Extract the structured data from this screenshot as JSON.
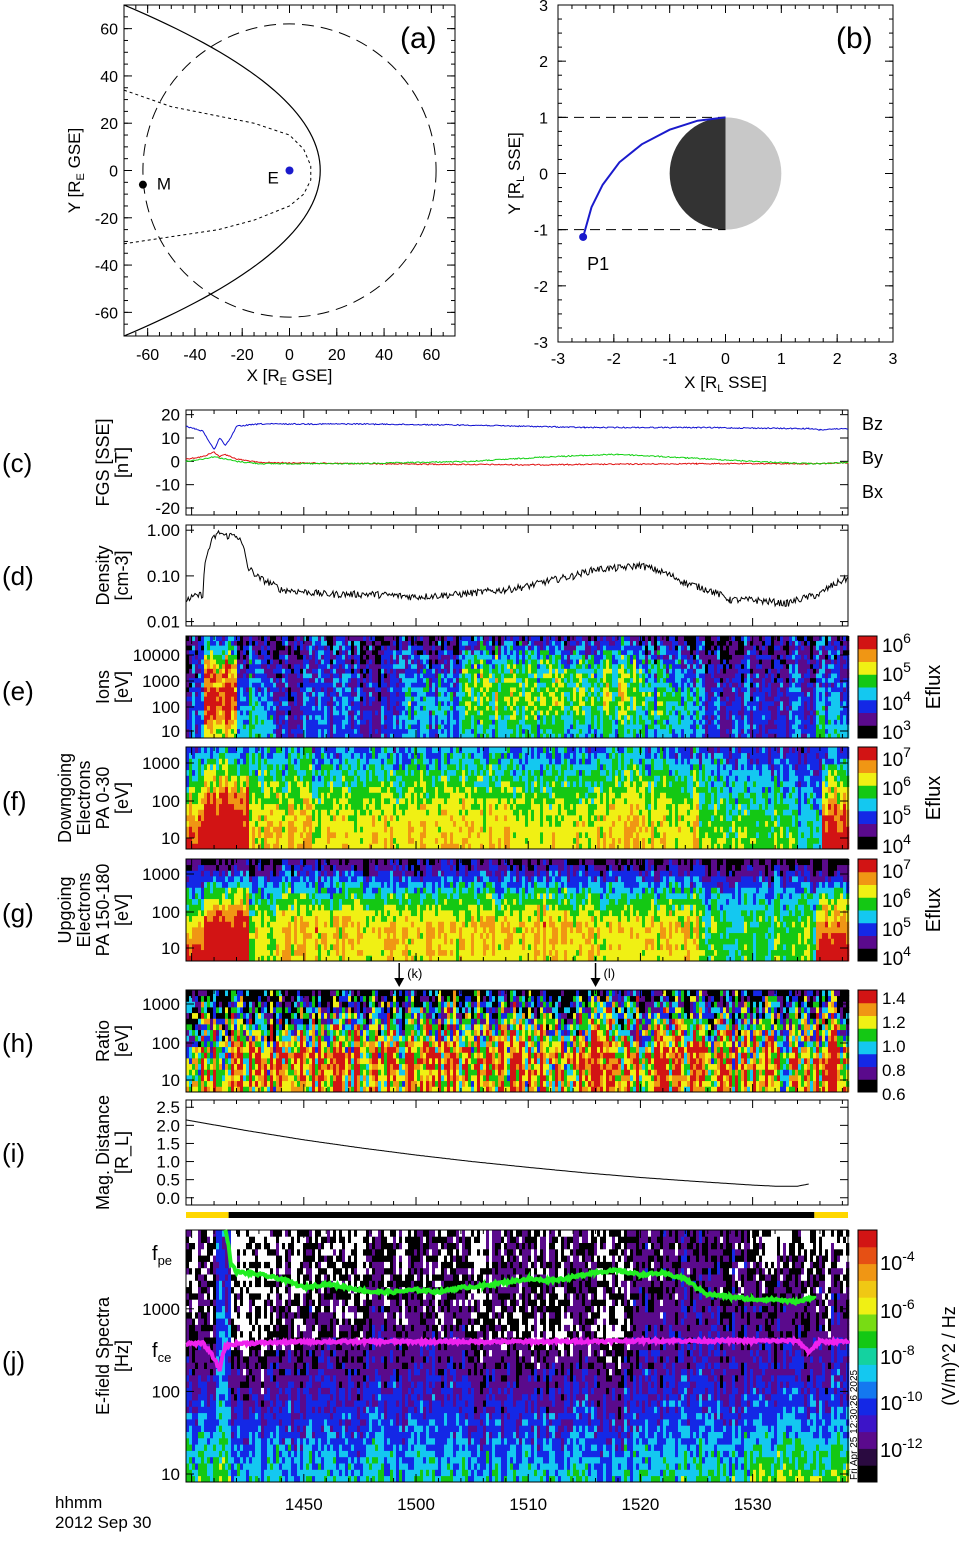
{
  "chart_data": [
    {
      "id": "a",
      "type": "line",
      "panel_label": "(a)",
      "xlabel": "X [R_E GSE]",
      "ylabel": "Y [R_E GSE]",
      "xlim": [
        -70,
        70
      ],
      "ylim": [
        -70,
        70
      ],
      "xticks": [
        "-60",
        "-40",
        "-20",
        "0",
        "20",
        "40",
        "60"
      ],
      "yticks": [
        "-60",
        "-40",
        "-20",
        "0",
        "20",
        "40",
        "60"
      ],
      "tick_values": [
        -60,
        -40,
        -20,
        0,
        20,
        40,
        60
      ],
      "bow_shock": {
        "nose_x": 13,
        "edge": [
          -70,
          70
        ]
      },
      "magnetopause": [
        [
          -70,
          34
        ],
        [
          -50,
          27
        ],
        [
          -30,
          23
        ],
        [
          -15,
          20
        ],
        [
          0,
          15
        ],
        [
          6,
          9
        ],
        [
          9,
          2
        ],
        [
          9,
          -4
        ],
        [
          6,
          -10
        ],
        [
          0,
          -15
        ],
        [
          -15,
          -21
        ],
        [
          -30,
          -25
        ],
        [
          -50,
          -28
        ],
        [
          -70,
          -31
        ]
      ],
      "lunar_orbit_radius": 62,
      "moon": {
        "label": "M",
        "x": -62,
        "y": -6,
        "color": "#000000"
      },
      "earth": {
        "label": "E",
        "x": 0,
        "y": 0,
        "color": "#1a1acc"
      }
    },
    {
      "id": "b",
      "type": "line",
      "panel_label": "(b)",
      "xlabel": "X [R_L SSE]",
      "ylabel": "Y [R_L SSE]",
      "xlim": [
        -3,
        3
      ],
      "ylim": [
        -3,
        3
      ],
      "xticks": [
        "-3",
        "-2",
        "-1",
        "0",
        "1",
        "2",
        "3"
      ],
      "yticks": [
        "-3",
        "-2",
        "-1",
        "0",
        "1",
        "2",
        "3"
      ],
      "tick_values": [
        -3,
        -2,
        -1,
        0,
        1,
        2,
        3
      ],
      "trajectory": [
        [
          -2.55,
          -1.13
        ],
        [
          -2.4,
          -0.6
        ],
        [
          -2.2,
          -0.2
        ],
        [
          -1.9,
          0.2
        ],
        [
          -1.5,
          0.52
        ],
        [
          -1.0,
          0.78
        ],
        [
          -0.5,
          0.94
        ],
        [
          0,
          1.0
        ]
      ],
      "trajectory_color": "#1a1acc",
      "point": {
        "label": "P1",
        "x": -2.55,
        "y": -1.13
      },
      "moon_dark_color": "#333333",
      "moon_light_color": "#c8c8c8"
    },
    {
      "id": "c",
      "type": "line",
      "panel_label": "(c)",
      "ylabel": [
        "FGS [SSE]",
        "[nT]"
      ],
      "ylim": [
        -23,
        22
      ],
      "yticks": [
        "20",
        "10",
        "0",
        "-10",
        "-20"
      ],
      "tick_values": [
        20,
        10,
        0,
        -10,
        -20
      ],
      "series": [
        {
          "name": "Bz",
          "color": "#e01010",
          "t": [
            39.5,
            41,
            42,
            42.5,
            43,
            44,
            46,
            55,
            70,
            85,
            95,
            96,
            98.5
          ],
          "values": [
            1,
            2,
            4,
            2,
            3,
            1,
            -0.5,
            -1,
            -1.5,
            -1,
            -1,
            -1,
            -0.5
          ]
        },
        {
          "name": "By",
          "color": "#10d010",
          "t": [
            39.5,
            41,
            42,
            43,
            44,
            46,
            55,
            65,
            72,
            78,
            84,
            90,
            95,
            96,
            98.5
          ],
          "values": [
            0,
            1,
            2,
            1,
            0,
            -1,
            -1,
            0,
            2,
            3,
            1.5,
            0,
            -1,
            -1,
            -0.5
          ]
        },
        {
          "name": "Bx",
          "color": "#1010d0",
          "t": [
            39.5,
            41,
            42,
            42.5,
            43,
            43.5,
            44,
            46,
            55,
            65,
            75,
            85,
            95,
            96,
            98.5
          ],
          "values": [
            15,
            13,
            5,
            10,
            7,
            10,
            15,
            16,
            16,
            15.5,
            14.5,
            14.5,
            14,
            13.5,
            14
          ]
        }
      ]
    },
    {
      "id": "d",
      "type": "line",
      "panel_label": "(d)",
      "ylabel": [
        "Density",
        "[cm-3]"
      ],
      "yscale": "log",
      "ylim": [
        0.008,
        1.3
      ],
      "yticks": [
        "1.00",
        "0.10",
        "0.01"
      ],
      "tick_values": [
        1,
        0.1,
        0.01
      ],
      "series": [
        {
          "name": "density",
          "color": "#000000",
          "t": [
            39.5,
            41,
            42,
            42.5,
            43,
            44,
            45,
            46,
            48,
            52,
            56,
            60,
            64,
            68,
            70,
            72,
            74,
            76,
            78,
            80,
            82,
            84,
            86,
            88,
            90,
            93,
            96,
            98.5
          ],
          "values": [
            0.03,
            0.04,
            0.7,
            0.9,
            0.75,
            0.8,
            0.15,
            0.09,
            0.05,
            0.04,
            0.04,
            0.035,
            0.04,
            0.05,
            0.06,
            0.08,
            0.1,
            0.14,
            0.15,
            0.17,
            0.12,
            0.07,
            0.05,
            0.03,
            0.03,
            0.025,
            0.04,
            0.09
          ]
        }
      ]
    },
    {
      "id": "e",
      "type": "heatmap",
      "panel_label": "(e)",
      "ylabel": [
        "Ions",
        "[eV]"
      ],
      "yticks": [
        "10000",
        "1000",
        "100",
        "10"
      ],
      "colorbar": {
        "ticks": [
          "10^6",
          "10^5",
          "10^4",
          "10^3"
        ],
        "label": "Eflux",
        "range_log": [
          3,
          6.3
        ]
      },
      "energy_bands": [
        "10-100",
        "100-1000",
        "1000-10000",
        ">10000"
      ],
      "segments": [
        {
          "t": [
            39.5,
            41
          ],
          "levels": [
            0.3,
            0.3,
            0.22,
            0.15
          ]
        },
        {
          "t": [
            41,
            44
          ],
          "levels": [
            0.65,
            0.95,
            0.8,
            0.3
          ]
        },
        {
          "t": [
            44,
            47.5
          ],
          "levels": [
            0.5,
            0.42,
            0.3,
            0.2
          ]
        },
        {
          "t": [
            47.5,
            59
          ],
          "levels": [
            0.3,
            0.28,
            0.25,
            0.2
          ]
        },
        {
          "t": [
            59,
            64
          ],
          "levels": [
            0.38,
            0.45,
            0.35,
            0.2
          ]
        },
        {
          "t": [
            64,
            80
          ],
          "levels": [
            0.45,
            0.6,
            0.55,
            0.25
          ]
        },
        {
          "t": [
            80,
            85
          ],
          "levels": [
            0.4,
            0.52,
            0.38,
            0.2
          ]
        },
        {
          "t": [
            85,
            95.5
          ],
          "levels": [
            0.3,
            0.3,
            0.25,
            0.2
          ]
        },
        {
          "t": [
            95.5,
            98.5
          ],
          "levels": [
            0.45,
            0.35,
            0.25,
            0.2
          ]
        }
      ]
    },
    {
      "id": "f",
      "type": "heatmap",
      "panel_label": "(f)",
      "ylabel": [
        "Downgoing",
        "Electrons",
        "PA 0-30",
        "[eV]"
      ],
      "yticks": [
        "1000",
        "100",
        "10"
      ],
      "colorbar": {
        "ticks": [
          "10^7",
          "10^6",
          "10^5",
          "10^4"
        ],
        "label": "Eflux",
        "range_log": [
          3.8,
          7.2
        ]
      },
      "segments": [
        {
          "t": [
            39.5,
            41
          ],
          "levels": [
            0.95,
            0.75,
            0.5,
            0.35
          ]
        },
        {
          "t": [
            41,
            45
          ],
          "levels": [
            1,
            1,
            0.7,
            0.4
          ]
        },
        {
          "t": [
            45,
            85
          ],
          "levels": [
            0.72,
            0.68,
            0.55,
            0.38
          ]
        },
        {
          "t": [
            85,
            94
          ],
          "levels": [
            0.62,
            0.55,
            0.45,
            0.3
          ]
        },
        {
          "t": [
            94,
            96
          ],
          "levels": [
            0.5,
            0.45,
            0.35,
            0.25
          ]
        },
        {
          "t": [
            96,
            98.5
          ],
          "levels": [
            1,
            0.85,
            0.6,
            0.3
          ]
        }
      ]
    },
    {
      "id": "g",
      "type": "heatmap",
      "panel_label": "(g)",
      "ylabel": [
        "Upgoing",
        "Electrons",
        "PA 150-180",
        "[eV]"
      ],
      "yticks": [
        "1000",
        "100",
        "10"
      ],
      "colorbar": {
        "ticks": [
          "10^7",
          "10^6",
          "10^5",
          "10^4"
        ],
        "label": "Eflux",
        "range_log": [
          3.8,
          7.2
        ]
      },
      "segments": [
        {
          "t": [
            39.5,
            41
          ],
          "levels": [
            0.9,
            0.7,
            0.4,
            0.08
          ]
        },
        {
          "t": [
            41,
            45
          ],
          "levels": [
            1,
            1,
            0.6,
            0.1
          ]
        },
        {
          "t": [
            45,
            48
          ],
          "levels": [
            0.65,
            0.65,
            0.45,
            0.1
          ]
        },
        {
          "t": [
            48,
            85
          ],
          "levels": [
            0.7,
            0.75,
            0.5,
            0.15
          ]
        },
        {
          "t": [
            85,
            95.5
          ],
          "levels": [
            0.55,
            0.55,
            0.42,
            0.1
          ]
        },
        {
          "t": [
            95.5,
            98.5
          ],
          "levels": [
            1,
            0.85,
            0.55,
            0.05
          ]
        }
      ]
    },
    {
      "id": "h",
      "type": "heatmap",
      "panel_label": "(h)",
      "ylabel": [
        "Ratio",
        "[eV]"
      ],
      "yticks": [
        "1000",
        "100",
        "10"
      ],
      "colorbar": {
        "ticks": [
          "1.4",
          "1.2",
          "1.0",
          "0.8",
          "0.6"
        ],
        "label": "",
        "range": [
          0.55,
          1.5
        ]
      },
      "annotations": [
        {
          "label": "(k)",
          "t": 58.5
        },
        {
          "label": "(l)",
          "t": 76
        }
      ],
      "segments": [
        {
          "t": [
            39.5,
            45
          ],
          "levels": [
            0.8,
            0.7,
            0.5,
            0.2
          ]
        },
        {
          "t": [
            45,
            50
          ],
          "levels": [
            0.7,
            0.85,
            0.4,
            0.05
          ]
        },
        {
          "t": [
            50,
            85
          ],
          "levels": [
            0.75,
            0.85,
            0.55,
            0.15
          ]
        },
        {
          "t": [
            85,
            95.5
          ],
          "levels": [
            0.7,
            0.75,
            0.5,
            0.1
          ]
        },
        {
          "t": [
            95.5,
            98.5
          ],
          "levels": [
            0.95,
            0.9,
            0.6,
            0.05
          ]
        }
      ]
    },
    {
      "id": "i",
      "type": "line",
      "panel_label": "(i)",
      "ylabel": [
        "Mag. Distance",
        "[R_L]"
      ],
      "ylim": [
        -0.2,
        2.7
      ],
      "yticks": [
        "2.5",
        "2.0",
        "1.5",
        "1.0",
        "0.5",
        "0.0"
      ],
      "tick_values": [
        2.5,
        2.0,
        1.5,
        1.0,
        0.5,
        0.0
      ],
      "series": [
        {
          "name": "distance",
          "color": "#000000",
          "t": [
            39.5,
            45,
            50,
            55,
            60,
            65,
            70,
            75,
            80,
            85,
            90,
            92,
            94,
            95
          ],
          "values": [
            2.15,
            1.85,
            1.6,
            1.38,
            1.18,
            1.0,
            0.84,
            0.69,
            0.56,
            0.45,
            0.35,
            0.32,
            0.32,
            0.38
          ]
        }
      ],
      "status_bar": [
        {
          "t": [
            39.5,
            43.3
          ],
          "color": "#ffd700"
        },
        {
          "t": [
            43.3,
            95.5
          ],
          "color": "#000000"
        },
        {
          "t": [
            95.5,
            98.5
          ],
          "color": "#ffd700"
        }
      ]
    },
    {
      "id": "j",
      "type": "heatmap",
      "panel_label": "(j)",
      "ylabel": [
        "E-field Spectra",
        "[Hz]"
      ],
      "yscale": "log",
      "ylim": [
        8,
        9000
      ],
      "yticks": [
        "1000",
        "100",
        "10"
      ],
      "tick_values": [
        1000,
        100,
        10
      ],
      "colorbar": {
        "ticks": [
          "10^-4",
          "10^-6",
          "10^-8",
          "10^-10",
          "10^-12"
        ],
        "label": "(V/m)^2 / Hz",
        "range_log": [
          -13.5,
          -3
        ]
      },
      "timestamp": "Fri Apr 25 12:30:26 2025",
      "lines": [
        {
          "name": "f_pe",
          "color": "#22ee22",
          "t": [
            43,
            43.5,
            44,
            46,
            48,
            50,
            52,
            54,
            56,
            58,
            60,
            62,
            64,
            66,
            68,
            70,
            72,
            74,
            76,
            78,
            80,
            82,
            84,
            85,
            86,
            88,
            90,
            92,
            94,
            95.5
          ],
          "values": [
            9000,
            3500,
            2800,
            2600,
            2300,
            1800,
            2000,
            1800,
            1600,
            1600,
            1700,
            1600,
            1800,
            1900,
            2100,
            2300,
            2200,
            2400,
            2800,
            2900,
            2600,
            2700,
            2300,
            1800,
            1500,
            1400,
            1300,
            1300,
            1200,
            1400
          ]
        },
        {
          "name": "f_ce",
          "color": "#ee22ee",
          "t": [
            39.5,
            41,
            42,
            42.5,
            43,
            44,
            50,
            60,
            70,
            80,
            90,
            94,
            95,
            96,
            98.5
          ],
          "values": [
            380,
            380,
            250,
            180,
            350,
            380,
            400,
            400,
            400,
            410,
            410,
            410,
            300,
            400,
            400
          ]
        }
      ],
      "segments": [
        {
          "t": [
            39.5,
            42
          ],
          "levels": [
            0.55,
            0.35,
            0.2,
            0.1,
            0.05,
            0.05
          ]
        },
        {
          "t": [
            42,
            43.5
          ],
          "levels": [
            0.6,
            0.45,
            0.35,
            0.35,
            0.3,
            0.3
          ]
        },
        {
          "t": [
            43.5,
            47.5
          ],
          "levels": [
            0.4,
            0.3,
            0.15,
            0.0,
            0.0,
            0.0
          ]
        },
        {
          "t": [
            47.5,
            66
          ],
          "levels": [
            0.45,
            0.32,
            0.22,
            0.12,
            0.08,
            0.05
          ]
        },
        {
          "t": [
            66,
            79
          ],
          "levels": [
            0.45,
            0.3,
            0.2,
            0.05,
            0.1,
            0.08
          ]
        },
        {
          "t": [
            79,
            89.5
          ],
          "levels": [
            0.5,
            0.35,
            0.25,
            0.2,
            0.15,
            0.15
          ]
        },
        {
          "t": [
            89.5,
            98.5
          ],
          "levels": [
            0.6,
            0.4,
            0.25,
            0.18,
            0.1,
            0.0
          ]
        }
      ]
    }
  ],
  "time_axis": {
    "label_top": "hhmm",
    "label_bottom": "2012 Sep 30",
    "range": [
      39.5,
      98.5
    ],
    "ticks": [
      {
        "t": 50,
        "label": "1450"
      },
      {
        "t": 60,
        "label": "1500"
      },
      {
        "t": 70,
        "label": "1510"
      },
      {
        "t": 80,
        "label": "1520"
      },
      {
        "t": 90,
        "label": "1530"
      }
    ]
  },
  "colormap": [
    "#000000",
    "#5a0a8c",
    "#1428e6",
    "#14c8f0",
    "#14c814",
    "#f0f014",
    "#f09614",
    "#d21414"
  ]
}
